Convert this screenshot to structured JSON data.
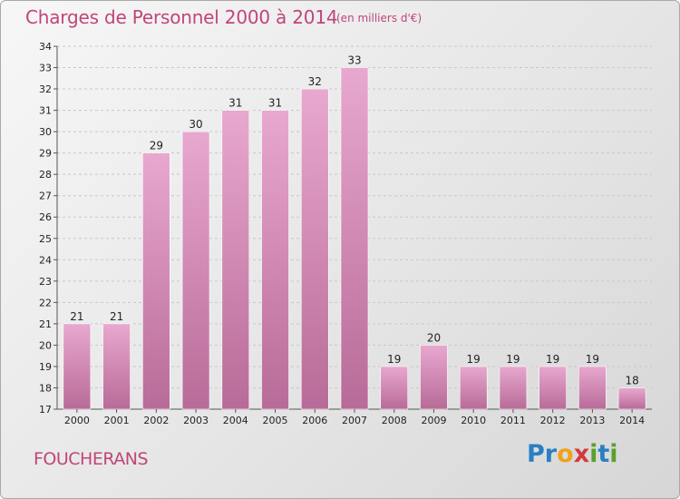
{
  "title": "Charges de Personnel 2000 à 2014",
  "subtitle": "(en milliers d'€)",
  "commune": "FOUCHERANS",
  "logo": {
    "text": "Proxiti",
    "letters": [
      {
        "ch": "P",
        "color": "#2a7fc4"
      },
      {
        "ch": "r",
        "color": "#2a7fc4"
      },
      {
        "ch": "o",
        "color": "#f0a21c"
      },
      {
        "ch": "x",
        "color": "#d33b3b"
      },
      {
        "ch": "i",
        "color": "#5aa02c"
      },
      {
        "ch": "t",
        "color": "#2a7fc4"
      },
      {
        "ch": "i",
        "color": "#5aa02c"
      }
    ]
  },
  "colors": {
    "bar_top": "#e8a8cf",
    "bar_bottom": "#b86b98",
    "accent": "#c0457a"
  },
  "chart_data": {
    "type": "bar",
    "categories": [
      "2000",
      "2001",
      "2002",
      "2003",
      "2004",
      "2005",
      "2006",
      "2007",
      "2008",
      "2009",
      "2010",
      "2011",
      "2012",
      "2013",
      "2014"
    ],
    "values": [
      21,
      21,
      29,
      30,
      31,
      31,
      32,
      33,
      19,
      20,
      19,
      19,
      19,
      19,
      18
    ],
    "title": "Charges de Personnel 2000 à 2014",
    "xlabel": "",
    "ylabel": "",
    "ylim": [
      17,
      34
    ],
    "yticks": [
      17,
      18,
      19,
      20,
      21,
      22,
      23,
      24,
      25,
      26,
      27,
      28,
      29,
      30,
      31,
      32,
      33,
      34
    ],
    "grid": true
  }
}
